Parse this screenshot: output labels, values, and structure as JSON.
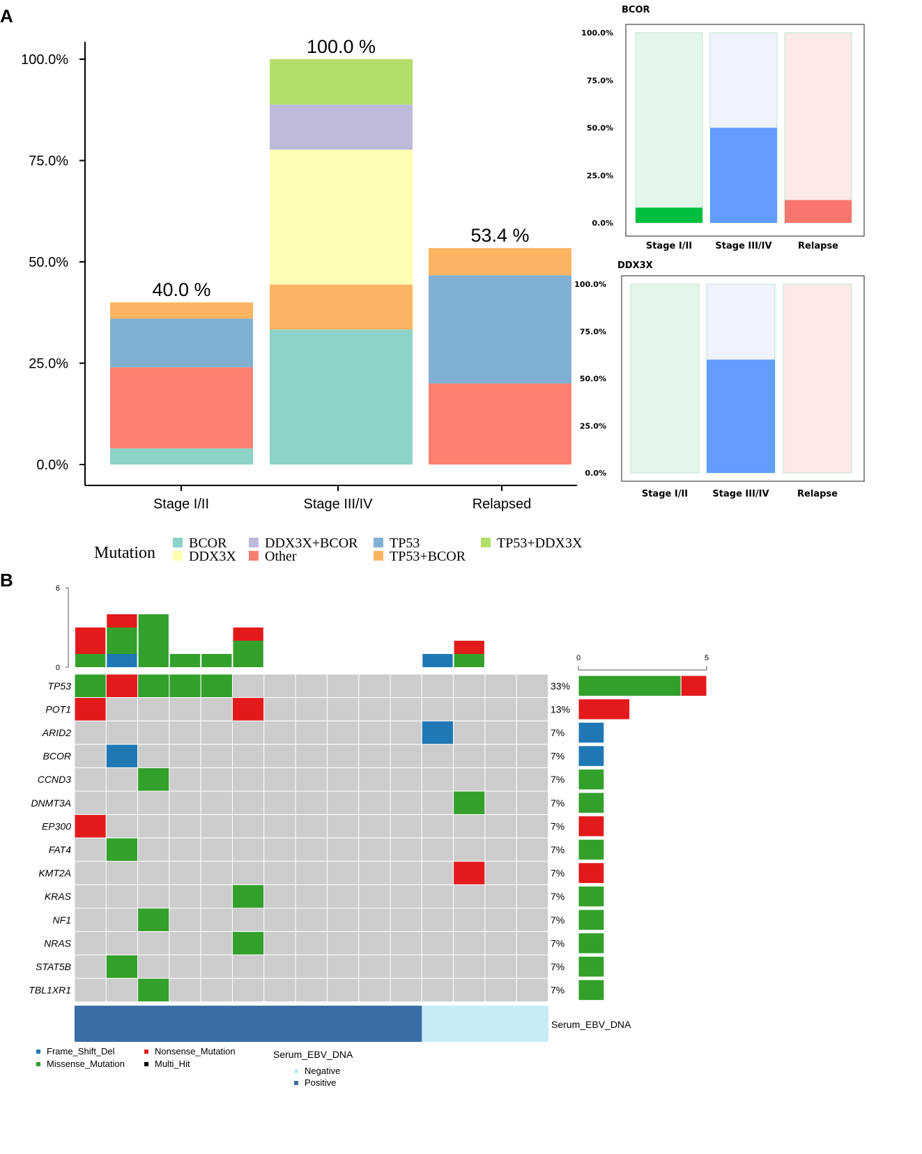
{
  "panel_labels": {
    "a": "A",
    "b": "B"
  },
  "colors": {
    "BCOR": "#8dd3c7",
    "DDX3X": "#ffffb3",
    "DDX3X+BCOR": "#bebada",
    "Other": "#fb8072",
    "TP53": "#80b1d3",
    "TP53+BCOR": "#fdb462",
    "TP53+DDX3X": "#b3de69",
    "Frame_Shift_Del": "#1f78b4",
    "Missense_Mutation": "#33a02c",
    "Nonsense_Mutation": "#e31a1c",
    "Multi_Hit": "#000000",
    "Negative": "#c6ecf5",
    "Positive": "#3b6ea5",
    "grid": "#cccccc"
  },
  "chart_data": [
    {
      "id": "stacked",
      "type": "bar",
      "categories": [
        "Stage I/II",
        "Stage III/IV",
        "Relapsed"
      ],
      "ylim": [
        0,
        100
      ],
      "yticks": [
        "0.0%",
        "25.0%",
        "50.0%",
        "75.0%",
        "100.0%"
      ],
      "totals": [
        "40.0 %",
        "100.0 %",
        "53.4 %"
      ],
      "series": [
        {
          "name": "BCOR",
          "values": [
            4,
            33.3,
            0
          ]
        },
        {
          "name": "Other",
          "values": [
            20,
            0,
            20
          ]
        },
        {
          "name": "TP53",
          "values": [
            12,
            0,
            26.7
          ]
        },
        {
          "name": "TP53+BCOR",
          "values": [
            4,
            11.1,
            6.7
          ]
        },
        {
          "name": "DDX3X",
          "values": [
            0,
            33.3,
            0
          ]
        },
        {
          "name": "DDX3X+BCOR",
          "values": [
            0,
            11.1,
            0
          ]
        },
        {
          "name": "TP53+DDX3X",
          "values": [
            0,
            11.2,
            0
          ]
        }
      ]
    },
    {
      "id": "bcor",
      "type": "bar",
      "title": "BCOR",
      "categories": [
        "Stage I/II",
        "Stage III/IV",
        "Relapse"
      ],
      "yticks": [
        "0.0%",
        "25.0%",
        "50.0%",
        "75.0%",
        "100.0%"
      ],
      "ylim": [
        0,
        100
      ],
      "values": [
        8,
        50,
        12
      ],
      "colors": [
        "#00bf40",
        "#619cff",
        "#f8766d"
      ],
      "bg_colors": [
        "#e3f6ea",
        "#eef3fd",
        "#fde9e7"
      ]
    },
    {
      "id": "ddx3x",
      "type": "bar",
      "title": "DDX3X",
      "categories": [
        "Stage I/II",
        "Stage III/IV",
        "Relapse"
      ],
      "yticks": [
        "0.0%",
        "25.0%",
        "50.0%",
        "75.0%",
        "100.0%"
      ],
      "ylim": [
        0,
        100
      ],
      "values": [
        0,
        60,
        0
      ],
      "colors": [
        "#00bf40",
        "#619cff",
        "#f8766d"
      ],
      "bg_colors": [
        "#e3f6ea",
        "#eef3fd",
        "#fde9e7"
      ]
    },
    {
      "id": "oncoplot",
      "type": "heatmap",
      "genes": [
        "TP53",
        "POT1",
        "ARID2",
        "BCOR",
        "CCND3",
        "DNMT3A",
        "EP300",
        "FAT4",
        "KMT2A",
        "KRAS",
        "NF1",
        "NRAS",
        "STAT5B",
        "TBL1XR1"
      ],
      "percents": [
        "33%",
        "13%",
        "7%",
        "7%",
        "7%",
        "7%",
        "7%",
        "7%",
        "7%",
        "7%",
        "7%",
        "7%",
        "7%",
        "7%"
      ],
      "n_samples": 15,
      "cells": [
        [
          "M",
          "N",
          "M",
          "M",
          "M",
          ".",
          ".",
          ".",
          ".",
          ".",
          ".",
          ".",
          ".",
          ".",
          "."
        ],
        [
          "N",
          ".",
          ".",
          ".",
          ".",
          "N",
          ".",
          ".",
          ".",
          ".",
          ".",
          ".",
          ".",
          ".",
          "."
        ],
        [
          ".",
          ".",
          ".",
          ".",
          ".",
          ".",
          ".",
          ".",
          ".",
          ".",
          ".",
          "F",
          ".",
          ".",
          "."
        ],
        [
          ".",
          "F",
          ".",
          ".",
          ".",
          ".",
          ".",
          ".",
          ".",
          ".",
          ".",
          ".",
          ".",
          ".",
          "."
        ],
        [
          ".",
          ".",
          "M",
          ".",
          ".",
          ".",
          ".",
          ".",
          ".",
          ".",
          ".",
          ".",
          ".",
          ".",
          "."
        ],
        [
          ".",
          ".",
          ".",
          ".",
          ".",
          ".",
          ".",
          ".",
          ".",
          ".",
          ".",
          ".",
          "M",
          ".",
          "."
        ],
        [
          "N",
          ".",
          ".",
          ".",
          ".",
          ".",
          ".",
          ".",
          ".",
          ".",
          ".",
          ".",
          ".",
          ".",
          "."
        ],
        [
          ".",
          "M",
          ".",
          ".",
          ".",
          ".",
          ".",
          ".",
          ".",
          ".",
          ".",
          ".",
          ".",
          ".",
          "."
        ],
        [
          ".",
          ".",
          ".",
          ".",
          ".",
          ".",
          ".",
          ".",
          ".",
          ".",
          ".",
          ".",
          "N",
          ".",
          "."
        ],
        [
          ".",
          ".",
          ".",
          ".",
          ".",
          "M",
          ".",
          ".",
          ".",
          ".",
          ".",
          ".",
          ".",
          ".",
          "."
        ],
        [
          ".",
          ".",
          "M",
          ".",
          ".",
          ".",
          ".",
          ".",
          ".",
          ".",
          ".",
          ".",
          ".",
          ".",
          "."
        ],
        [
          ".",
          ".",
          ".",
          ".",
          ".",
          "M",
          ".",
          ".",
          ".",
          ".",
          ".",
          ".",
          ".",
          ".",
          "."
        ],
        [
          ".",
          "M",
          ".",
          ".",
          ".",
          ".",
          ".",
          ".",
          ".",
          ".",
          ".",
          ".",
          ".",
          ".",
          "."
        ],
        [
          ".",
          ".",
          "M",
          ".",
          ".",
          ".",
          ".",
          ".",
          ".",
          ".",
          ".",
          ".",
          ".",
          ".",
          "."
        ]
      ],
      "top_axis": {
        "max": 6,
        "ticks": [
          "0",
          "6"
        ]
      },
      "right_axis": {
        "max": 5,
        "ticks": [
          "0",
          "5"
        ]
      },
      "serum_label": "Serum_EBV_DNA",
      "serum": [
        "P",
        "P",
        "P",
        "P",
        "P",
        "P",
        "P",
        "P",
        "P",
        "P",
        "P",
        "N",
        "N",
        "N",
        "N"
      ]
    }
  ],
  "legend_top": {
    "title": "Mutation",
    "items": [
      "BCOR",
      "DDX3X",
      "DDX3X+BCOR",
      "Other",
      "TP53",
      "TP53+BCOR",
      "TP53+DDX3X"
    ]
  },
  "legend_bottom": {
    "items": [
      "Frame_Shift_Del",
      "Missense_Mutation",
      "Nonsense_Mutation",
      "Multi_Hit"
    ],
    "serum_title": "Serum_EBV_DNA",
    "serum_items": [
      "Negative",
      "Positive"
    ]
  }
}
